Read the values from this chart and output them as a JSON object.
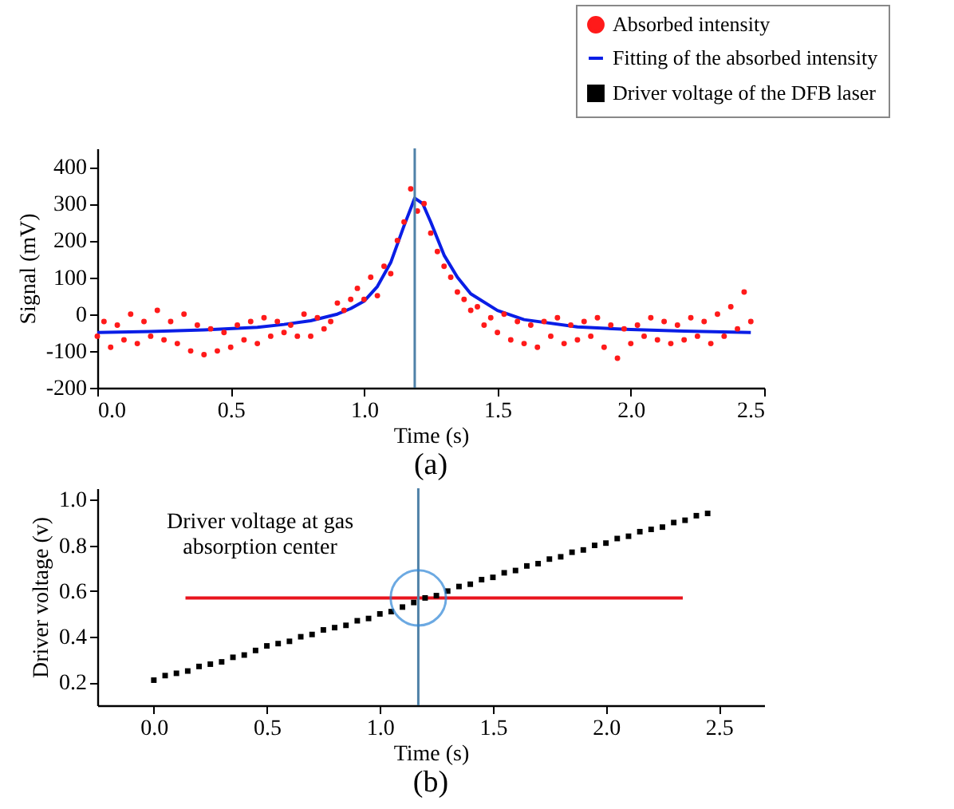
{
  "chart_data": [
    {
      "type": "scatter",
      "title": "(a)",
      "xlabel": "Time (s)",
      "ylabel": "Signal (mV)",
      "xlim": [
        0,
        2.5
      ],
      "ylim": [
        -200,
        450
      ],
      "xticks": [
        {
          "value": 0,
          "label": "0.0"
        },
        {
          "value": 0.5,
          "label": "0.5"
        },
        {
          "value": 1,
          "label": "1.0"
        },
        {
          "value": 1.5,
          "label": "1.5"
        },
        {
          "value": 2,
          "label": "2.0"
        },
        {
          "value": 2.5,
          "label": "2.5"
        }
      ],
      "yticks": [
        -200,
        -100,
        0,
        100,
        200,
        300,
        400
      ],
      "legend": "top right",
      "grid": false,
      "series": [
        {
          "name": "Absorbed intensity",
          "marker": "circle",
          "color": "#ff1a1a",
          "x": [
            0,
            0.025,
            0.05,
            0.075,
            0.1,
            0.125,
            0.15,
            0.175,
            0.2,
            0.225,
            0.25,
            0.275,
            0.3,
            0.325,
            0.35,
            0.375,
            0.4,
            0.425,
            0.45,
            0.475,
            0.5,
            0.525,
            0.55,
            0.575,
            0.6,
            0.625,
            0.65,
            0.675,
            0.7,
            0.725,
            0.75,
            0.775,
            0.8,
            0.825,
            0.85,
            0.875,
            0.9,
            0.925,
            0.95,
            0.975,
            1,
            1.025,
            1.05,
            1.075,
            1.1,
            1.125,
            1.15,
            1.175,
            1.2,
            1.225,
            1.25,
            1.275,
            1.3,
            1.325,
            1.35,
            1.375,
            1.4,
            1.425,
            1.45,
            1.475,
            1.5,
            1.525,
            1.55,
            1.575,
            1.6,
            1.625,
            1.65,
            1.675,
            1.7,
            1.725,
            1.75,
            1.775,
            1.8,
            1.825,
            1.85,
            1.875,
            1.9,
            1.925,
            1.95,
            1.975,
            2,
            2.025,
            2.05,
            2.075,
            2.1,
            2.125,
            2.15,
            2.175,
            2.2,
            2.225,
            2.25,
            2.275,
            2.3,
            2.325,
            2.35,
            2.375,
            2.4,
            2.425,
            2.45
          ],
          "values": [
            -60,
            -20,
            -90,
            -30,
            -70,
            0,
            -80,
            -20,
            -60,
            10,
            -70,
            -20,
            -80,
            0,
            -100,
            -30,
            -110,
            -40,
            -100,
            -50,
            -90,
            -30,
            -70,
            -20,
            -80,
            -10,
            -60,
            -20,
            -50,
            -30,
            -60,
            0,
            -60,
            -10,
            -40,
            -20,
            30,
            10,
            40,
            70,
            40,
            100,
            50,
            130,
            110,
            200,
            250,
            340,
            280,
            300,
            220,
            170,
            130,
            100,
            60,
            40,
            10,
            20,
            -30,
            -10,
            -50,
            0,
            -70,
            -20,
            -80,
            -30,
            -90,
            -20,
            -60,
            -10,
            -80,
            -30,
            -70,
            -20,
            -60,
            -10,
            -90,
            -30,
            -120,
            -40,
            -80,
            -30,
            -60,
            -10,
            -70,
            -20,
            -80,
            -30,
            -70,
            -10,
            -60,
            -20,
            -80,
            0,
            -60,
            20,
            -40,
            60,
            -20
          ]
        },
        {
          "name": "Fitting of the absorbed intensity",
          "type": "line",
          "color": "#0a1ee6",
          "x": [
            0,
            0.2,
            0.4,
            0.6,
            0.7,
            0.8,
            0.9,
            0.95,
            1,
            1.05,
            1.1,
            1.15,
            1.19,
            1.22,
            1.25,
            1.3,
            1.35,
            1.4,
            1.5,
            1.6,
            1.8,
            2,
            2.2,
            2.45
          ],
          "values": [
            -50,
            -47,
            -43,
            -36,
            -28,
            -18,
            0,
            15,
            35,
            75,
            140,
            240,
            315,
            300,
            250,
            160,
            100,
            55,
            10,
            -15,
            -35,
            -42,
            -46,
            -50
          ]
        }
      ],
      "ref_lines": [
        {
          "axis": "x",
          "value": 1.19,
          "color": "#4f81a8"
        }
      ]
    },
    {
      "type": "scatter",
      "title": "(b)",
      "xlabel": "Time (s)",
      "ylabel": "Driver voltage (v)",
      "xlim": [
        -0.25,
        2.7
      ],
      "ylim": [
        0.1,
        1.05
      ],
      "xticks": [
        {
          "value": 0,
          "label": "0.0"
        },
        {
          "value": 0.5,
          "label": "0.5"
        },
        {
          "value": 1,
          "label": "1.0"
        },
        {
          "value": 1.5,
          "label": "1.5"
        },
        {
          "value": 2,
          "label": "2.0"
        },
        {
          "value": 2.5,
          "label": "2.5"
        }
      ],
      "yticks": [
        0.2,
        0.4,
        0.6,
        0.8,
        {
          "value": 1,
          "label": "1.0"
        }
      ],
      "grid": false,
      "series": [
        {
          "name": "Driver voltage of the DFB laser",
          "marker": "square",
          "color": "#000000",
          "x": [
            0,
            0.05,
            0.1,
            0.15,
            0.2,
            0.25,
            0.3,
            0.35,
            0.4,
            0.45,
            0.5,
            0.55,
            0.6,
            0.65,
            0.7,
            0.75,
            0.8,
            0.85,
            0.9,
            0.95,
            1,
            1.05,
            1.1,
            1.15,
            1.2,
            1.25,
            1.3,
            1.35,
            1.4,
            1.45,
            1.5,
            1.55,
            1.6,
            1.65,
            1.7,
            1.75,
            1.8,
            1.85,
            1.9,
            1.95,
            2,
            2.05,
            2.1,
            2.15,
            2.2,
            2.25,
            2.3,
            2.35,
            2.4,
            2.45
          ],
          "values": [
            0.21,
            0.23,
            0.24,
            0.25,
            0.27,
            0.28,
            0.29,
            0.31,
            0.32,
            0.34,
            0.36,
            0.37,
            0.38,
            0.4,
            0.41,
            0.43,
            0.44,
            0.45,
            0.47,
            0.48,
            0.5,
            0.51,
            0.53,
            0.55,
            0.57,
            0.58,
            0.6,
            0.62,
            0.63,
            0.65,
            0.66,
            0.68,
            0.69,
            0.71,
            0.72,
            0.74,
            0.75,
            0.77,
            0.78,
            0.8,
            0.81,
            0.83,
            0.84,
            0.86,
            0.87,
            0.88,
            0.9,
            0.91,
            0.93,
            0.94
          ]
        },
        {
          "type": "line",
          "color": "#e8141e",
          "x": [
            0.14,
            2.34
          ],
          "values": [
            0.57,
            0.57
          ]
        }
      ],
      "ref_lines": [
        {
          "axis": "x",
          "value": 1.17,
          "color": "#4f81a8"
        }
      ],
      "annotations": [
        "Driver voltage at gas absorption center"
      ]
    }
  ]
}
